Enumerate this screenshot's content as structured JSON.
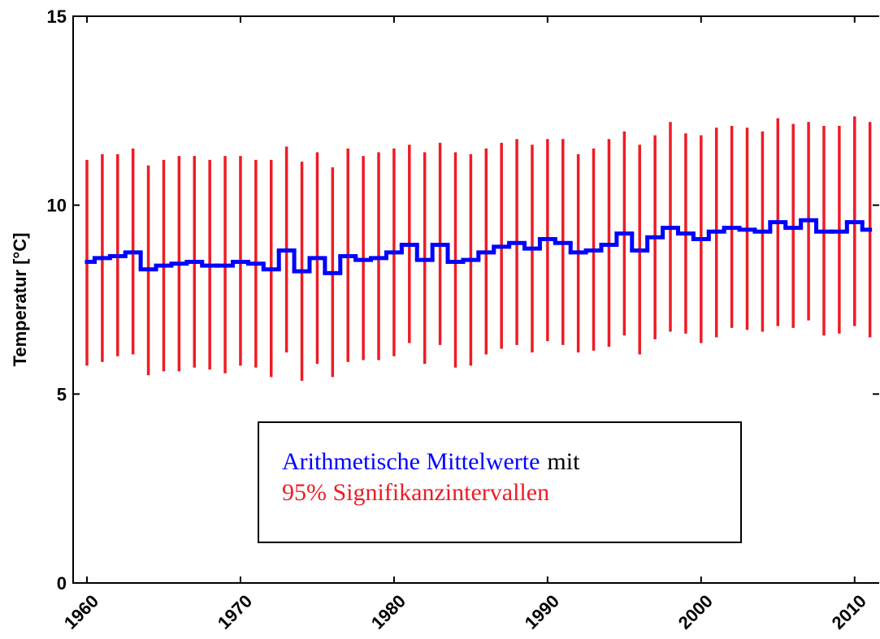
{
  "chart_data": {
    "type": "stairs-errorbar",
    "y_label": "Temperatur [°C]",
    "x": [
      1960,
      1961,
      1962,
      1963,
      1964,
      1965,
      1966,
      1967,
      1968,
      1969,
      1970,
      1971,
      1972,
      1973,
      1974,
      1975,
      1976,
      1977,
      1978,
      1979,
      1980,
      1981,
      1982,
      1983,
      1984,
      1985,
      1986,
      1987,
      1988,
      1989,
      1990,
      1991,
      1992,
      1993,
      1994,
      1995,
      1996,
      1997,
      1998,
      1999,
      2000,
      2001,
      2002,
      2003,
      2004,
      2005,
      2006,
      2007,
      2008,
      2009,
      2010,
      2011
    ],
    "series": [
      {
        "name": "Arithmetische Mittelwerte",
        "color": "#0000ff",
        "values": [
          8.5,
          8.6,
          8.65,
          8.75,
          8.3,
          8.4,
          8.45,
          8.5,
          8.4,
          8.4,
          8.5,
          8.45,
          8.3,
          8.8,
          8.25,
          8.6,
          8.2,
          8.65,
          8.55,
          8.6,
          8.75,
          8.95,
          8.55,
          8.95,
          8.5,
          8.55,
          8.75,
          8.9,
          9.0,
          8.85,
          9.1,
          9.0,
          8.75,
          8.8,
          8.95,
          9.25,
          8.8,
          9.15,
          9.4,
          9.25,
          9.1,
          9.3,
          9.4,
          9.35,
          9.3,
          9.55,
          9.4,
          9.6,
          9.3,
          9.3,
          9.55,
          9.35
        ]
      },
      {
        "name": "95% Signifikanzintervallen",
        "color": "#ee1c25",
        "lower": [
          5.75,
          5.85,
          6.0,
          6.05,
          5.5,
          5.6,
          5.6,
          5.7,
          5.65,
          5.55,
          5.75,
          5.7,
          5.45,
          6.1,
          5.35,
          5.8,
          5.45,
          5.85,
          5.9,
          5.9,
          6.0,
          6.35,
          5.8,
          6.3,
          5.7,
          5.75,
          6.05,
          6.2,
          6.3,
          6.1,
          6.4,
          6.3,
          6.1,
          6.15,
          6.25,
          6.55,
          6.05,
          6.45,
          6.65,
          6.6,
          6.35,
          6.5,
          6.75,
          6.7,
          6.65,
          6.8,
          6.75,
          6.95,
          6.55,
          6.6,
          6.8,
          6.5
        ],
        "upper": [
          11.2,
          11.35,
          11.35,
          11.5,
          11.05,
          11.2,
          11.3,
          11.3,
          11.2,
          11.3,
          11.3,
          11.2,
          11.2,
          11.55,
          11.15,
          11.4,
          11.0,
          11.5,
          11.3,
          11.4,
          11.5,
          11.6,
          11.4,
          11.65,
          11.4,
          11.35,
          11.5,
          11.65,
          11.75,
          11.6,
          11.75,
          11.75,
          11.35,
          11.5,
          11.75,
          11.95,
          11.6,
          11.85,
          12.2,
          11.9,
          11.85,
          12.05,
          12.1,
          12.05,
          11.95,
          12.3,
          12.15,
          12.2,
          12.1,
          12.1,
          12.35,
          12.2
        ]
      }
    ],
    "legend_joiner": "mit",
    "xlim": [
      1959.1,
      2011.6
    ],
    "xticks": [
      1960,
      1970,
      1980,
      1990,
      2000,
      2010
    ],
    "ylim": [
      0,
      15
    ],
    "yticks": [
      0,
      5,
      10,
      15
    ],
    "grid": false
  }
}
